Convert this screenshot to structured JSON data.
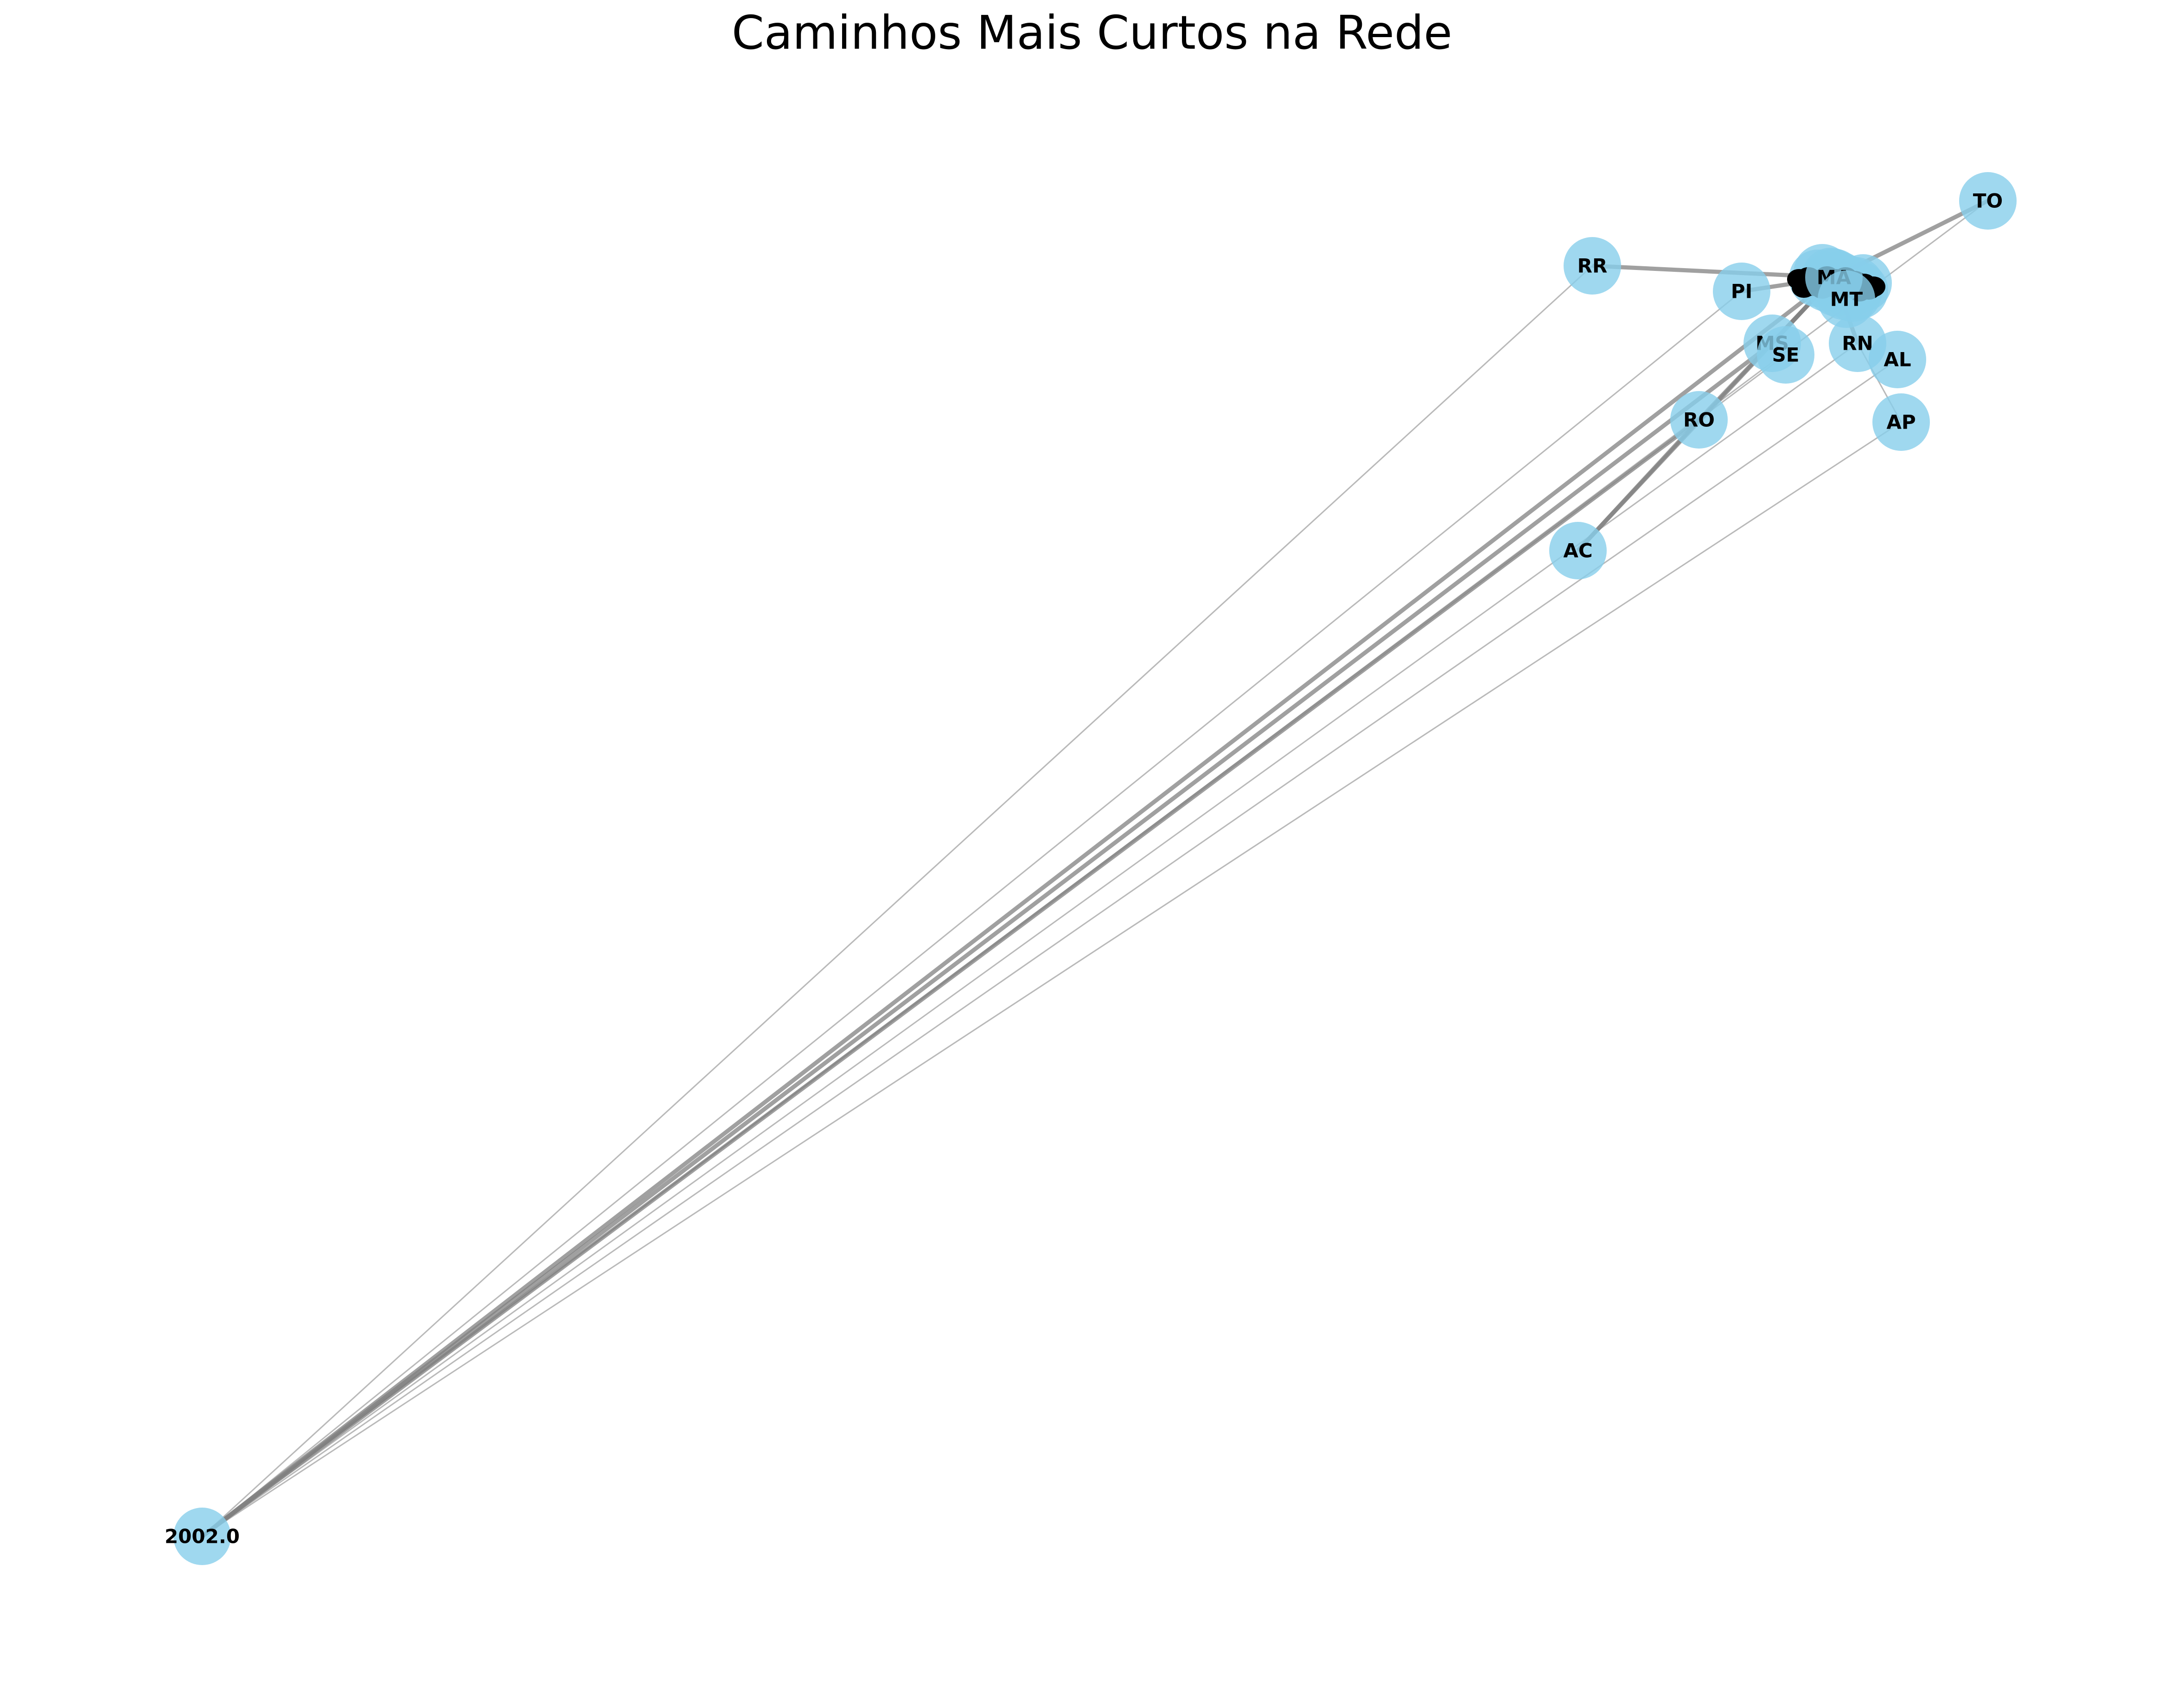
{
  "figure": {
    "title": "Caminhos Mais Curtos na Rede"
  },
  "colors": {
    "node_fill": "#87CEEB",
    "edge": "#808080",
    "label": "#000000"
  },
  "graph": {
    "nodes": [
      {
        "id": "TO",
        "label": "TO"
      },
      {
        "id": "RR",
        "label": "RR"
      },
      {
        "id": "PI",
        "label": "PI"
      },
      {
        "id": "MA",
        "label": "MA"
      },
      {
        "id": "MT",
        "label": "MT"
      },
      {
        "id": "MS",
        "label": "MS"
      },
      {
        "id": "SE",
        "label": "SE"
      },
      {
        "id": "RN",
        "label": "RN"
      },
      {
        "id": "AL",
        "label": "AL"
      },
      {
        "id": "AP",
        "label": "AP"
      },
      {
        "id": "RO",
        "label": "RO"
      },
      {
        "id": "AC",
        "label": "AC"
      },
      {
        "id": "2002.0",
        "label": "2002.0"
      }
    ],
    "edges": [
      {
        "from": "2002.0",
        "to": "RR",
        "weight": "thin"
      },
      {
        "from": "2002.0",
        "to": "PI",
        "weight": "thin"
      },
      {
        "from": "2002.0",
        "to": "MS",
        "weight": "thick"
      },
      {
        "from": "2002.0",
        "to": "SE",
        "weight": "thin"
      },
      {
        "from": "2002.0",
        "to": "RN",
        "weight": "thin"
      },
      {
        "from": "2002.0",
        "to": "AL",
        "weight": "thin"
      },
      {
        "from": "2002.0",
        "to": "AP",
        "weight": "thin"
      },
      {
        "from": "2002.0",
        "to": "RO",
        "weight": "thick"
      },
      {
        "from": "2002.0",
        "to": "TO",
        "weight": "thin"
      },
      {
        "from": "2002.0",
        "to": "MA",
        "weight": "thick"
      },
      {
        "from": "RR",
        "to": "MA",
        "weight": "thick"
      },
      {
        "from": "PI",
        "to": "MA",
        "weight": "thick"
      },
      {
        "from": "TO",
        "to": "MA",
        "weight": "thick"
      },
      {
        "from": "AC",
        "to": "RO",
        "weight": "thick"
      },
      {
        "from": "AC",
        "to": "MA",
        "weight": "thick"
      },
      {
        "from": "RO",
        "to": "MA",
        "weight": "thick"
      },
      {
        "from": "MS",
        "to": "MA",
        "weight": "thick"
      },
      {
        "from": "AP",
        "to": "RN",
        "weight": "thin"
      },
      {
        "from": "RN",
        "to": "MA",
        "weight": "thick"
      }
    ]
  }
}
